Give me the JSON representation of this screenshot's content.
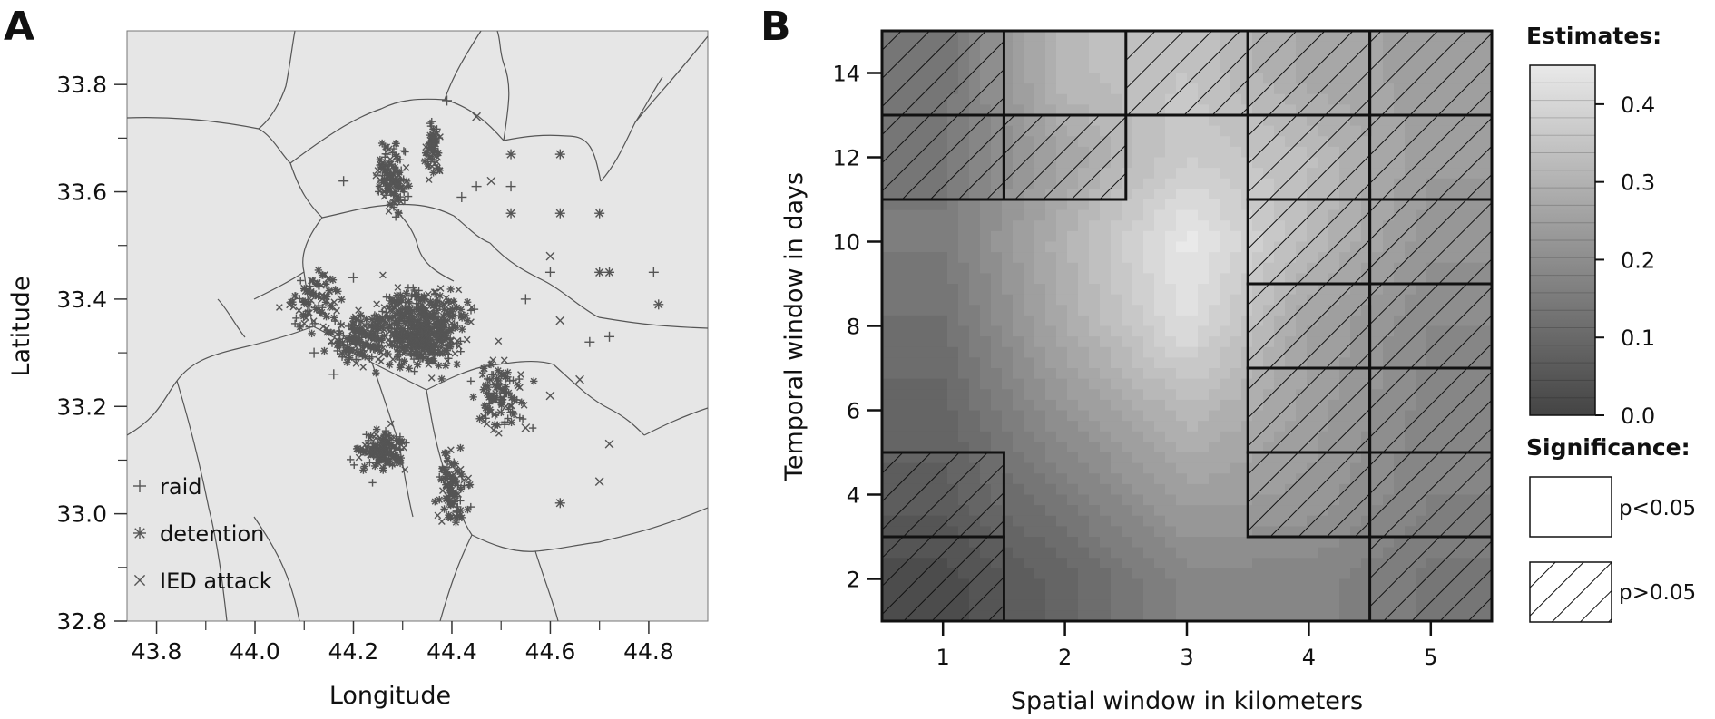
{
  "chart_data": [
    {
      "panel_label": "A",
      "type": "scatter",
      "xlabel": "Longitude",
      "ylabel": "Latitude",
      "xlim": [
        43.74,
        44.92
      ],
      "ylim": [
        32.8,
        33.9
      ],
      "xticks": [
        43.8,
        44.0,
        44.2,
        44.4,
        44.6,
        44.8
      ],
      "yticks": [
        32.8,
        33.0,
        33.2,
        33.4,
        33.6,
        33.8
      ],
      "xtick_labels": [
        "43.8",
        "44.0",
        "44.2",
        "44.4",
        "44.6",
        "44.8"
      ],
      "ytick_labels": [
        "32.8",
        "33.0",
        "33.2",
        "33.4",
        "33.6",
        "33.8"
      ],
      "background": "#e6e6e6",
      "point_color": "#555555",
      "legend_position": "bottom-left",
      "legend": [
        {
          "label": "raid",
          "symbol": "+"
        },
        {
          "label": "detention",
          "symbol": "*"
        },
        {
          "label": "IED attack",
          "symbol": "x"
        }
      ],
      "series": [
        {
          "name": "raid",
          "marker": "plus",
          "points": [
            [
              44.81,
              33.45
            ],
            [
              44.68,
              33.32
            ],
            [
              44.72,
              33.33
            ],
            [
              44.52,
              33.61
            ],
            [
              44.42,
              33.59
            ],
            [
              44.45,
              33.61
            ],
            [
              44.16,
              33.26
            ],
            [
              44.2,
              33.44
            ],
            [
              44.39,
              33.77
            ],
            [
              44.55,
              33.4
            ],
            [
              44.6,
              33.45
            ],
            [
              44.18,
              33.62
            ],
            [
              44.12,
              33.3
            ]
          ]
        },
        {
          "name": "detention",
          "marker": "star",
          "points": [
            [
              44.52,
              33.67
            ],
            [
              44.62,
              33.67
            ],
            [
              44.52,
              33.56
            ],
            [
              44.62,
              33.56
            ],
            [
              44.7,
              33.56
            ],
            [
              44.72,
              33.45
            ],
            [
              44.82,
              33.39
            ],
            [
              44.7,
              33.45
            ],
            [
              44.62,
              33.02
            ]
          ]
        },
        {
          "name": "IED attack",
          "marker": "x",
          "points": [
            [
              44.7,
              33.06
            ],
            [
              44.72,
              33.13
            ],
            [
              44.6,
              33.22
            ],
            [
              44.62,
              33.36
            ],
            [
              44.66,
              33.25
            ],
            [
              44.55,
              33.16
            ],
            [
              44.6,
              33.48
            ],
            [
              44.48,
              33.62
            ],
            [
              44.45,
              33.74
            ]
          ]
        }
      ]
    },
    {
      "panel_label": "B",
      "type": "heatmap",
      "xlabel": "Spatial window in kilometers",
      "ylabel": "Temporal window in days",
      "x": [
        1,
        2,
        3,
        4,
        5
      ],
      "y": [
        2,
        4,
        6,
        8,
        10,
        12,
        14
      ],
      "xlim": [
        0.5,
        5.5
      ],
      "ylim": [
        1,
        15
      ],
      "yticks": [
        2,
        4,
        6,
        8,
        10,
        12,
        14
      ],
      "values": [
        [
          0.02,
          0.09,
          0.18,
          0.18,
          0.14
        ],
        [
          0.07,
          0.15,
          0.25,
          0.23,
          0.17
        ],
        [
          0.09,
          0.22,
          0.32,
          0.25,
          0.18
        ],
        [
          0.12,
          0.28,
          0.42,
          0.26,
          0.19
        ],
        [
          0.15,
          0.3,
          0.45,
          0.32,
          0.22
        ],
        [
          0.14,
          0.26,
          0.37,
          0.33,
          0.24
        ],
        [
          0.13,
          0.32,
          0.35,
          0.27,
          0.25
        ]
      ],
      "colorbar_title": "Estimates:",
      "colorbar_range": [
        0.0,
        0.45
      ],
      "colorbar_ticks": [
        "0.0",
        "0.1",
        "0.2",
        "0.3",
        "0.4"
      ],
      "colorbar_low_color": "#444444",
      "colorbar_high_color": "#e9e9e9",
      "significance_title": "Significance:",
      "significance_legend": [
        {
          "label": "p<0.05",
          "hatched": false
        },
        {
          "label": "p>0.05",
          "hatched": true
        }
      ],
      "hatched_rects": [
        {
          "x": [
            0.5,
            1.5
          ],
          "y": [
            1,
            3
          ]
        },
        {
          "x": [
            0.5,
            1.5
          ],
          "y": [
            3,
            5
          ]
        },
        {
          "x": [
            0.5,
            1.5
          ],
          "y": [
            11,
            13
          ]
        },
        {
          "x": [
            0.5,
            1.5
          ],
          "y": [
            13,
            15
          ]
        },
        {
          "x": [
            1.5,
            2.5
          ],
          "y": [
            11,
            13
          ]
        },
        {
          "x": [
            2.5,
            3.5
          ],
          "y": [
            13,
            15
          ]
        },
        {
          "x": [
            3.5,
            4.5
          ],
          "y": [
            13,
            15
          ]
        },
        {
          "x": [
            3.5,
            4.5
          ],
          "y": [
            11,
            13
          ]
        },
        {
          "x": [
            3.5,
            4.5
          ],
          "y": [
            9,
            11
          ]
        },
        {
          "x": [
            3.5,
            4.5
          ],
          "y": [
            7,
            9
          ]
        },
        {
          "x": [
            3.5,
            4.5
          ],
          "y": [
            5,
            7
          ]
        },
        {
          "x": [
            3.5,
            4.5
          ],
          "y": [
            3,
            5
          ]
        },
        {
          "x": [
            4.5,
            5.5
          ],
          "y": [
            13,
            15
          ]
        },
        {
          "x": [
            4.5,
            5.5
          ],
          "y": [
            11,
            13
          ]
        },
        {
          "x": [
            4.5,
            5.5
          ],
          "y": [
            9,
            11
          ]
        },
        {
          "x": [
            4.5,
            5.5
          ],
          "y": [
            7,
            9
          ]
        },
        {
          "x": [
            4.5,
            5.5
          ],
          "y": [
            5,
            7
          ]
        },
        {
          "x": [
            4.5,
            5.5
          ],
          "y": [
            3,
            5
          ]
        },
        {
          "x": [
            4.5,
            5.5
          ],
          "y": [
            1,
            3
          ]
        }
      ]
    }
  ]
}
